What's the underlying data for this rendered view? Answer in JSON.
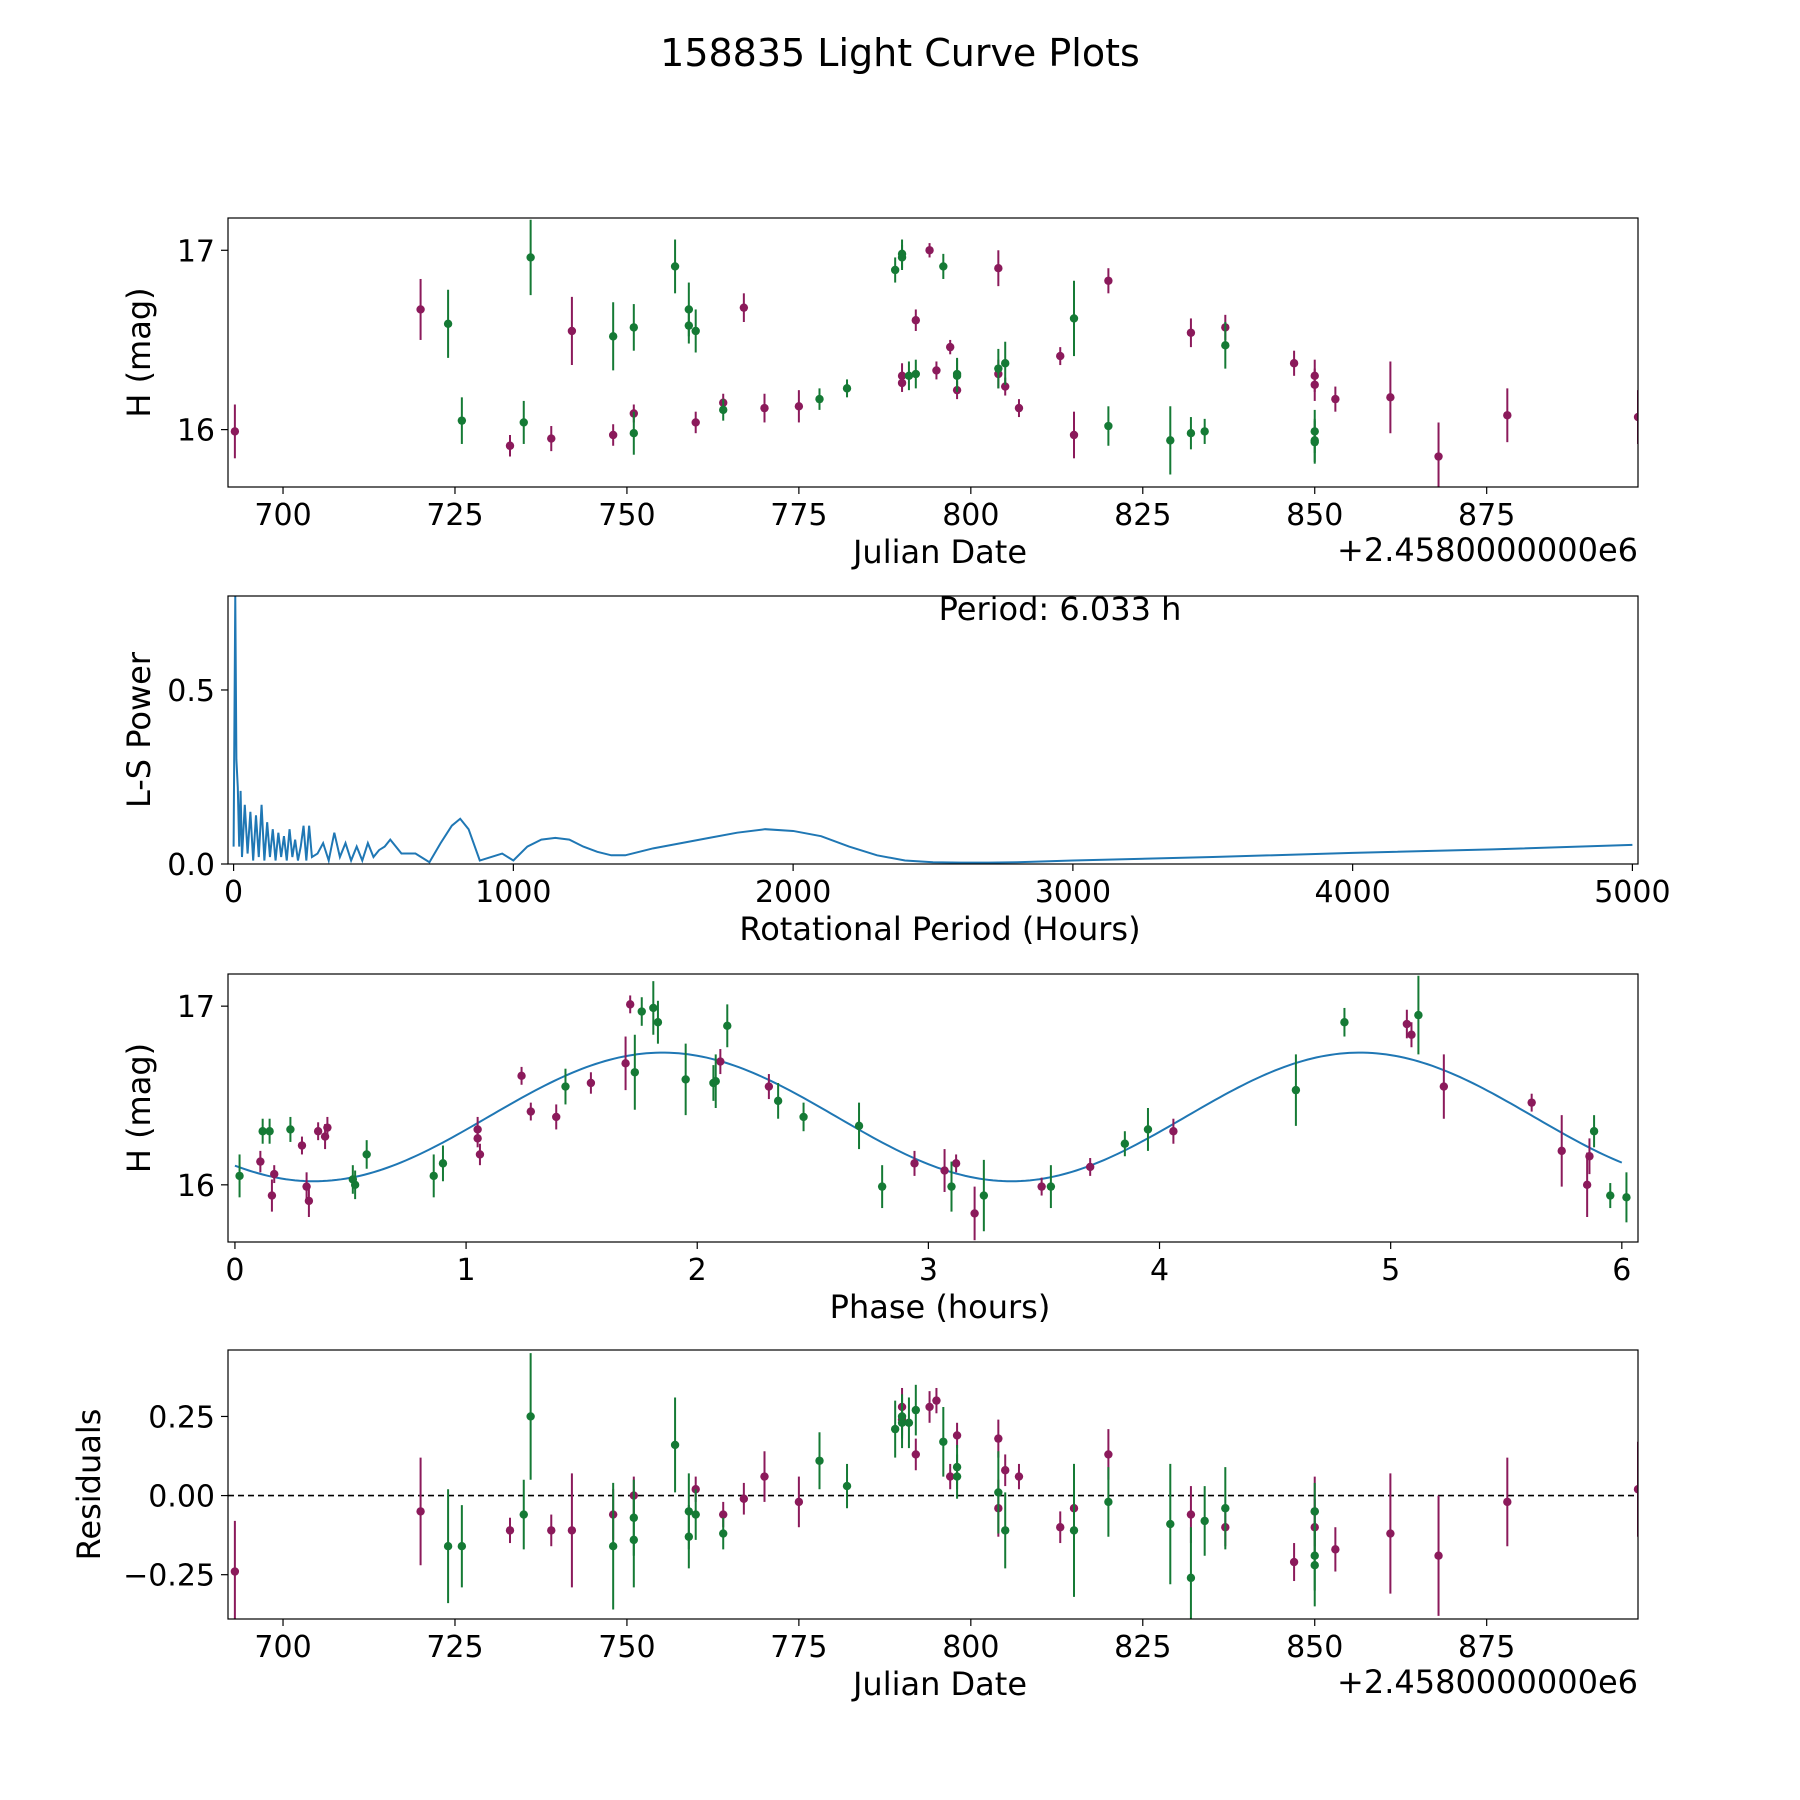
{
  "title": "158835 Light Curve Plots",
  "colors": {
    "series_a": "#8B1A5B",
    "series_b": "#157A35",
    "line": "#1F77B4",
    "zero_line": "#000000"
  },
  "chart_data": [
    {
      "name": "light-curve",
      "type": "scatter",
      "xlabel": "Julian Date",
      "ylabel": "H (mag)",
      "x_offset_label": "+2.4580000000e6",
      "xlim": [
        692,
        897
      ],
      "ylim": [
        15.68,
        17.18
      ],
      "xticks": [
        700,
        725,
        750,
        775,
        800,
        825,
        850,
        875
      ],
      "yticks": [
        16,
        17
      ],
      "series": [
        {
          "name": "band-1",
          "color": "#8B1A5B",
          "x": [
            693,
            720,
            733,
            739,
            742,
            748,
            751,
            760,
            764,
            767,
            770,
            775,
            790,
            790,
            792,
            794,
            795,
            797,
            798,
            804,
            804,
            805,
            807,
            813,
            815,
            820,
            832,
            837,
            847,
            850,
            850,
            853,
            861,
            868,
            878,
            897
          ],
          "y": [
            15.99,
            16.67,
            15.91,
            15.95,
            16.55,
            15.97,
            16.09,
            16.04,
            16.15,
            16.68,
            16.12,
            16.13,
            16.3,
            16.26,
            16.61,
            17.0,
            16.33,
            16.46,
            16.22,
            16.31,
            16.9,
            16.24,
            16.12,
            16.41,
            15.97,
            16.83,
            16.54,
            16.57,
            16.37,
            16.3,
            16.25,
            16.17,
            16.18,
            15.85,
            16.08,
            16.07
          ],
          "err": [
            0.15,
            0.17,
            0.06,
            0.07,
            0.19,
            0.06,
            0.05,
            0.06,
            0.05,
            0.08,
            0.08,
            0.09,
            0.07,
            0.05,
            0.06,
            0.04,
            0.05,
            0.04,
            0.05,
            0.08,
            0.1,
            0.05,
            0.05,
            0.05,
            0.13,
            0.07,
            0.08,
            0.07,
            0.07,
            0.09,
            0.09,
            0.07,
            0.2,
            0.19,
            0.15,
            0.15
          ]
        },
        {
          "name": "band-2",
          "color": "#157A35",
          "x": [
            724,
            726,
            735,
            736,
            748,
            751,
            751,
            757,
            759,
            759,
            760,
            764,
            778,
            782,
            789,
            790,
            790,
            791,
            792,
            796,
            798,
            798,
            804,
            805,
            815,
            820,
            829,
            832,
            834,
            837,
            850,
            850,
            850
          ],
          "y": [
            16.59,
            16.05,
            16.04,
            16.96,
            16.52,
            16.57,
            15.98,
            16.91,
            16.58,
            16.67,
            16.55,
            16.11,
            16.17,
            16.23,
            16.89,
            16.96,
            16.98,
            16.3,
            16.31,
            16.91,
            16.31,
            16.3,
            16.34,
            16.37,
            16.62,
            16.02,
            15.94,
            15.98,
            15.99,
            16.47,
            15.94,
            15.99,
            15.93
          ],
          "err": [
            0.19,
            0.13,
            0.12,
            0.21,
            0.19,
            0.13,
            0.12,
            0.15,
            0.1,
            0.15,
            0.12,
            0.06,
            0.06,
            0.05,
            0.07,
            0.07,
            0.08,
            0.08,
            0.08,
            0.07,
            0.09,
            0.09,
            0.11,
            0.12,
            0.21,
            0.11,
            0.19,
            0.09,
            0.07,
            0.13,
            0.12,
            0.12,
            0.12
          ]
        }
      ]
    },
    {
      "name": "periodogram",
      "type": "line",
      "xlabel": "Rotational Period (Hours)",
      "ylabel": "L-S Power",
      "annotation": "Period: 6.033 h",
      "xlim": [
        -20,
        5020
      ],
      "ylim": [
        0,
        0.77
      ],
      "xticks": [
        0,
        1000,
        2000,
        3000,
        4000,
        5000
      ],
      "yticks": [
        0.0,
        0.5
      ],
      "ytick_labels": [
        "0.0",
        "0.5"
      ],
      "series": [
        {
          "name": "ls-power",
          "x": [
            0,
            6,
            10,
            15,
            20,
            25,
            30,
            40,
            50,
            60,
            70,
            80,
            90,
            100,
            110,
            120,
            130,
            140,
            150,
            160,
            170,
            180,
            190,
            200,
            210,
            220,
            230,
            240,
            250,
            260,
            270,
            280,
            300,
            320,
            340,
            360,
            380,
            400,
            420,
            440,
            460,
            480,
            500,
            520,
            540,
            560,
            600,
            650,
            700,
            740,
            780,
            810,
            840,
            880,
            920,
            960,
            1000,
            1050,
            1100,
            1150,
            1200,
            1250,
            1300,
            1350,
            1400,
            1450,
            1500,
            1600,
            1700,
            1800,
            1900,
            2000,
            2100,
            2200,
            2300,
            2400,
            2500,
            2600,
            2700,
            2800,
            3000,
            3500,
            4000,
            4500,
            5000
          ],
          "y": [
            0.05,
            0.77,
            0.3,
            0.22,
            0.05,
            0.21,
            0.02,
            0.17,
            0.03,
            0.15,
            0.01,
            0.14,
            0.02,
            0.17,
            0.01,
            0.12,
            0.02,
            0.1,
            0.01,
            0.09,
            0.02,
            0.08,
            0.01,
            0.1,
            0.02,
            0.07,
            0.01,
            0.05,
            0.11,
            0.01,
            0.11,
            0.02,
            0.03,
            0.06,
            0.01,
            0.09,
            0.02,
            0.06,
            0.01,
            0.05,
            0.01,
            0.06,
            0.02,
            0.04,
            0.05,
            0.07,
            0.03,
            0.03,
            0.005,
            0.06,
            0.11,
            0.13,
            0.1,
            0.01,
            0.02,
            0.03,
            0.01,
            0.05,
            0.07,
            0.075,
            0.07,
            0.05,
            0.035,
            0.025,
            0.025,
            0.035,
            0.045,
            0.06,
            0.075,
            0.09,
            0.1,
            0.095,
            0.08,
            0.05,
            0.025,
            0.01,
            0.005,
            0.004,
            0.004,
            0.005,
            0.01,
            0.02,
            0.032,
            0.042,
            0.055
          ]
        }
      ]
    },
    {
      "name": "phased-curve",
      "type": "scatter",
      "xlabel": "Phase (hours)",
      "ylabel": "H (mag)",
      "xlim": [
        -0.03,
        6.07
      ],
      "ylim": [
        15.68,
        17.18
      ],
      "xticks": [
        0,
        1,
        2,
        3,
        4,
        5,
        6
      ],
      "yticks": [
        16,
        17
      ],
      "model": {
        "type": "sinusoid",
        "mean": 16.38,
        "amplitude": 0.36,
        "period_hours": 3.0165,
        "peak_phase_hours": 1.85,
        "x_range": [
          0,
          6.0
        ]
      },
      "series": [
        {
          "name": "band-1",
          "color": "#8B1A5B",
          "x": [
            0.11,
            0.16,
            0.17,
            0.29,
            0.31,
            0.32,
            0.36,
            0.39,
            0.4,
            1.05,
            1.05,
            1.06,
            1.24,
            1.28,
            1.39,
            1.54,
            1.69,
            1.71,
            2.1,
            2.31,
            2.94,
            3.07,
            3.12,
            3.2,
            3.49,
            3.7,
            4.06,
            5.07,
            5.09,
            5.23,
            5.61,
            5.74,
            5.85,
            5.86
          ],
          "y": [
            16.13,
            15.94,
            16.06,
            16.22,
            15.99,
            15.91,
            16.3,
            16.27,
            16.32,
            16.31,
            16.26,
            16.17,
            16.61,
            16.41,
            16.38,
            16.57,
            16.68,
            17.01,
            16.69,
            16.55,
            16.12,
            16.08,
            16.12,
            15.84,
            15.99,
            16.1,
            16.3,
            16.9,
            16.84,
            16.55,
            16.46,
            16.19,
            16.0,
            16.16
          ],
          "err": [
            0.06,
            0.09,
            0.05,
            0.05,
            0.08,
            0.09,
            0.05,
            0.07,
            0.06,
            0.07,
            0.05,
            0.06,
            0.05,
            0.05,
            0.07,
            0.06,
            0.15,
            0.05,
            0.07,
            0.07,
            0.07,
            0.12,
            0.05,
            0.15,
            0.05,
            0.05,
            0.07,
            0.08,
            0.07,
            0.18,
            0.05,
            0.2,
            0.18,
            0.1
          ]
        },
        {
          "name": "band-2",
          "color": "#157A35",
          "x": [
            0.02,
            0.12,
            0.15,
            0.24,
            0.51,
            0.52,
            0.57,
            0.86,
            0.9,
            1.43,
            1.73,
            1.76,
            1.81,
            1.83,
            1.95,
            2.07,
            2.08,
            2.13,
            2.35,
            2.46,
            2.7,
            2.8,
            3.1,
            3.24,
            3.53,
            3.85,
            3.95,
            4.59,
            4.8,
            5.12,
            5.88,
            5.95,
            6.02
          ],
          "y": [
            16.05,
            16.3,
            16.3,
            16.31,
            16.03,
            16.0,
            16.17,
            16.05,
            16.12,
            16.55,
            16.63,
            16.97,
            16.99,
            16.91,
            16.59,
            16.57,
            16.58,
            16.89,
            16.47,
            16.38,
            16.33,
            15.99,
            15.99,
            15.94,
            15.99,
            16.23,
            16.31,
            16.53,
            16.91,
            16.95,
            16.3,
            15.94,
            15.93
          ],
          "err": [
            0.12,
            0.07,
            0.07,
            0.07,
            0.08,
            0.08,
            0.08,
            0.12,
            0.1,
            0.1,
            0.21,
            0.08,
            0.15,
            0.12,
            0.2,
            0.1,
            0.15,
            0.12,
            0.1,
            0.08,
            0.13,
            0.12,
            0.14,
            0.2,
            0.12,
            0.07,
            0.12,
            0.2,
            0.08,
            0.22,
            0.09,
            0.07,
            0.14
          ]
        }
      ]
    },
    {
      "name": "residuals",
      "type": "scatter",
      "xlabel": "Julian Date",
      "ylabel": "Residuals",
      "x_offset_label": "+2.4580000000e6",
      "xlim": [
        692,
        897
      ],
      "ylim": [
        -0.39,
        0.46
      ],
      "xticks": [
        700,
        725,
        750,
        775,
        800,
        825,
        850,
        875
      ],
      "yticks": [
        -0.25,
        0.0,
        0.25
      ],
      "ytick_labels": [
        "−0.25",
        "0.00",
        "0.25"
      ],
      "zero_line": 0,
      "series": [
        {
          "name": "band-1",
          "color": "#8B1A5B",
          "x": [
            693,
            720,
            733,
            739,
            742,
            748,
            751,
            760,
            764,
            767,
            770,
            775,
            790,
            790,
            792,
            794,
            795,
            797,
            798,
            804,
            804,
            805,
            807,
            813,
            815,
            820,
            832,
            837,
            847,
            850,
            850,
            853,
            861,
            868,
            878,
            897
          ],
          "y": [
            -0.24,
            -0.05,
            -0.11,
            -0.11,
            -0.11,
            -0.06,
            0.0,
            0.02,
            -0.06,
            -0.01,
            0.06,
            -0.02,
            0.28,
            0.24,
            0.13,
            0.28,
            0.3,
            0.06,
            0.19,
            0.18,
            -0.04,
            0.08,
            0.06,
            -0.1,
            -0.04,
            0.13,
            -0.06,
            -0.1,
            -0.21,
            -0.05,
            -0.1,
            -0.17,
            -0.12,
            -0.19,
            -0.02,
            0.02
          ],
          "err": [
            0.16,
            0.17,
            0.04,
            0.05,
            0.18,
            0.08,
            0.06,
            0.04,
            0.04,
            0.05,
            0.08,
            0.08,
            0.06,
            0.05,
            0.05,
            0.05,
            0.04,
            0.04,
            0.04,
            0.06,
            0.09,
            0.05,
            0.04,
            0.05,
            0.13,
            0.08,
            0.09,
            0.06,
            0.06,
            0.11,
            0.09,
            0.07,
            0.19,
            0.19,
            0.14,
            0.15
          ]
        },
        {
          "name": "band-2",
          "color": "#157A35",
          "x": [
            724,
            726,
            735,
            736,
            748,
            751,
            751,
            757,
            759,
            759,
            760,
            764,
            778,
            782,
            789,
            790,
            790,
            791,
            792,
            796,
            798,
            798,
            804,
            805,
            815,
            820,
            829,
            832,
            834,
            837,
            850,
            850,
            850
          ],
          "y": [
            -0.16,
            -0.16,
            -0.06,
            0.25,
            -0.16,
            -0.07,
            -0.14,
            0.16,
            -0.05,
            -0.13,
            -0.06,
            -0.12,
            0.11,
            0.03,
            0.21,
            0.23,
            0.25,
            0.23,
            0.27,
            0.17,
            0.06,
            0.09,
            0.01,
            -0.11,
            -0.11,
            -0.02,
            -0.09,
            -0.26,
            -0.08,
            -0.04,
            -0.19,
            -0.05,
            -0.22
          ],
          "err": [
            0.18,
            0.13,
            0.11,
            0.2,
            0.2,
            0.12,
            0.15,
            0.15,
            0.12,
            0.1,
            0.08,
            0.05,
            0.09,
            0.07,
            0.09,
            0.08,
            0.07,
            0.08,
            0.08,
            0.11,
            0.07,
            0.07,
            0.13,
            0.12,
            0.21,
            0.11,
            0.19,
            0.16,
            0.11,
            0.13,
            0.11,
            0.09,
            0.13
          ]
        }
      ]
    }
  ]
}
